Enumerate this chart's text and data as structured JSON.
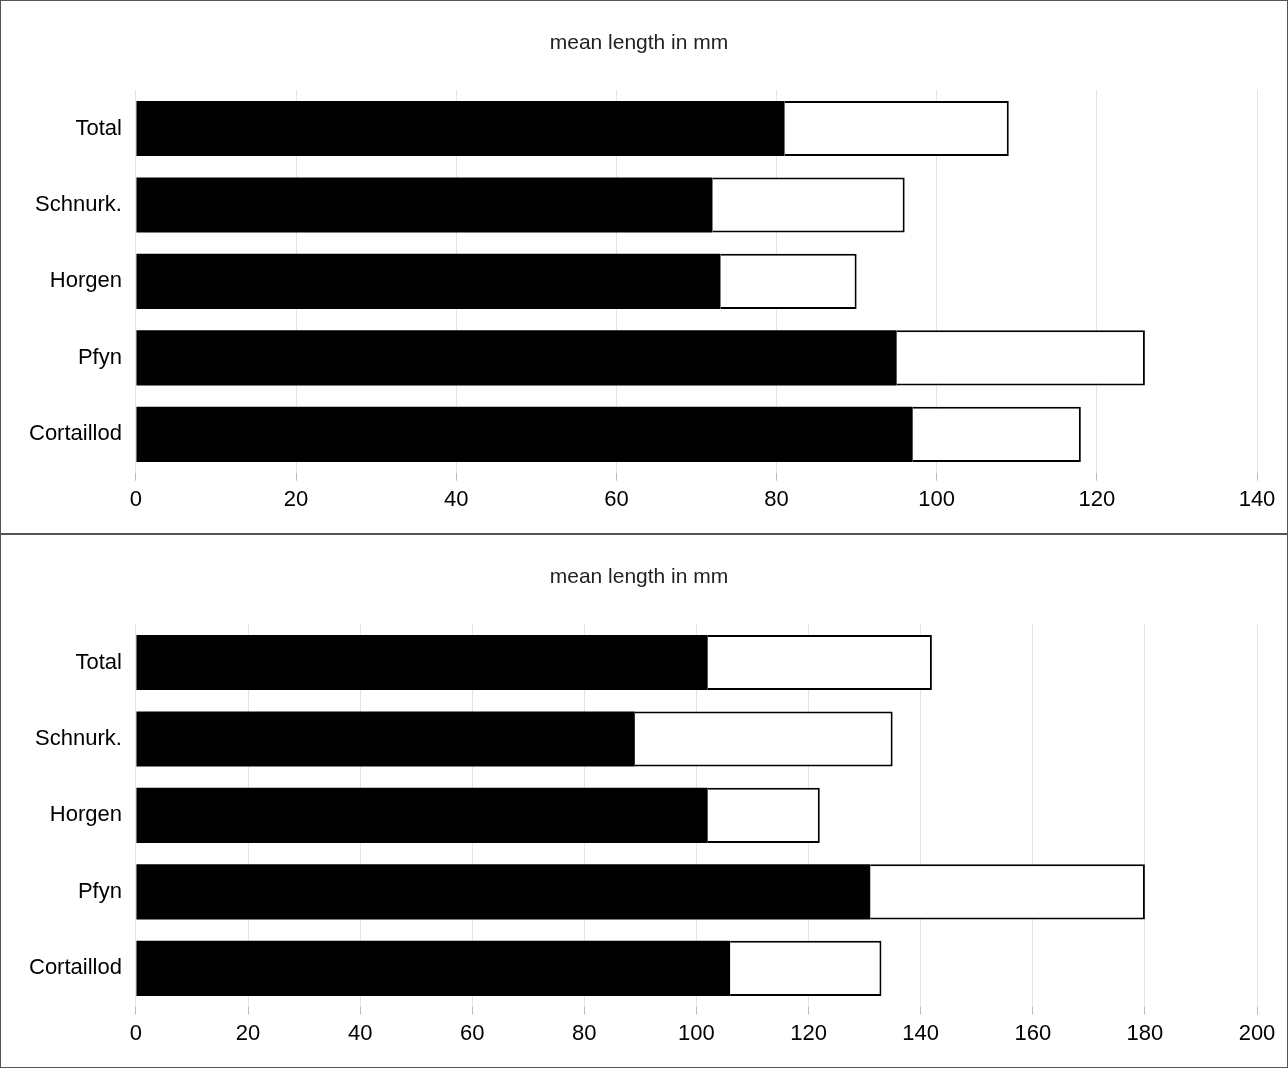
{
  "chart_data": [
    {
      "type": "bar",
      "title": "mean length in mm",
      "orientation": "horizontal",
      "stacked": true,
      "categories": [
        "Total",
        "Schnurk.",
        "Horgen",
        "Pfyn",
        "Cortaillod"
      ],
      "series": [
        {
          "color": "#000000",
          "values": [
            81,
            72,
            73,
            95,
            97
          ]
        },
        {
          "color": "#ffffff",
          "values": [
            28,
            24,
            17,
            31,
            21
          ]
        }
      ],
      "xlim": [
        0,
        140
      ],
      "xticks": [
        0,
        20,
        40,
        60,
        80,
        100,
        120,
        140
      ],
      "grid": "x",
      "legend": false
    },
    {
      "type": "bar",
      "title": "mean length in mm",
      "orientation": "horizontal",
      "stacked": true,
      "categories": [
        "Total",
        "Schnurk.",
        "Horgen",
        "Pfyn",
        "Cortaillod"
      ],
      "series": [
        {
          "color": "#000000",
          "values": [
            102,
            89,
            102,
            131,
            106
          ]
        },
        {
          "color": "#ffffff",
          "values": [
            40,
            46,
            20,
            49,
            27
          ]
        }
      ],
      "xlim": [
        0,
        200
      ],
      "xticks": [
        0,
        20,
        40,
        60,
        80,
        100,
        120,
        140,
        160,
        180,
        200
      ],
      "grid": "x",
      "legend": false
    }
  ]
}
